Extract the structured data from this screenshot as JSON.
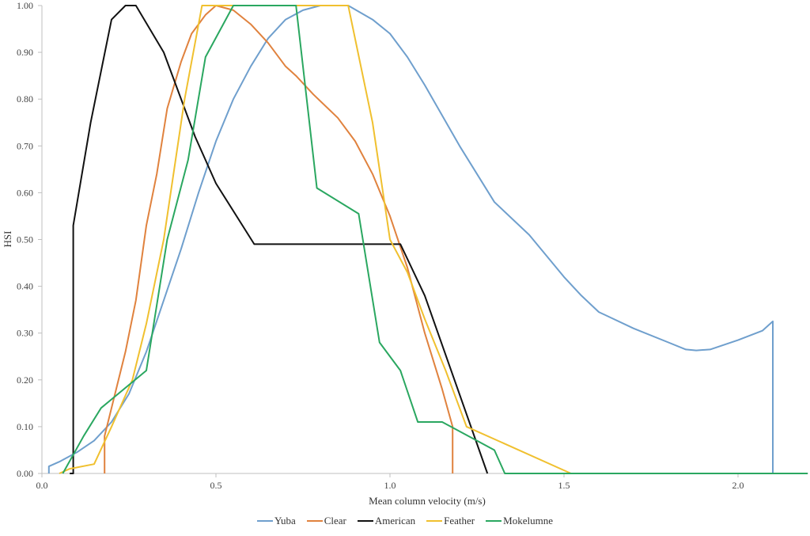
{
  "chart_data": {
    "type": "line",
    "title": "",
    "xlabel": "Mean column velocity (m/s)",
    "ylabel": "HSI",
    "xlim": [
      0,
      2.2
    ],
    "ylim": [
      0,
      1.0
    ],
    "x_ticks": [
      "0.0",
      "0.5",
      "1.0",
      "1.5",
      "2.0"
    ],
    "y_ticks": [
      "0.00",
      "0.10",
      "0.20",
      "0.30",
      "0.40",
      "0.50",
      "0.60",
      "0.70",
      "0.80",
      "0.90",
      "1.00"
    ],
    "grid": false,
    "legend_position": "bottom",
    "series": [
      {
        "name": "Yuba",
        "color": "#6f9fcd",
        "points": [
          [
            0.02,
            0
          ],
          [
            0.02,
            0.015
          ],
          [
            0.05,
            0.025
          ],
          [
            0.1,
            0.045
          ],
          [
            0.15,
            0.07
          ],
          [
            0.2,
            0.11
          ],
          [
            0.25,
            0.17
          ],
          [
            0.3,
            0.26
          ],
          [
            0.35,
            0.37
          ],
          [
            0.4,
            0.48
          ],
          [
            0.45,
            0.6
          ],
          [
            0.5,
            0.71
          ],
          [
            0.55,
            0.8
          ],
          [
            0.6,
            0.87
          ],
          [
            0.65,
            0.93
          ],
          [
            0.7,
            0.97
          ],
          [
            0.75,
            0.99
          ],
          [
            0.8,
            1.0
          ],
          [
            0.88,
            1.0
          ],
          [
            0.95,
            0.97
          ],
          [
            1.0,
            0.94
          ],
          [
            1.05,
            0.89
          ],
          [
            1.1,
            0.83
          ],
          [
            1.2,
            0.7
          ],
          [
            1.3,
            0.58
          ],
          [
            1.4,
            0.51
          ],
          [
            1.5,
            0.42
          ],
          [
            1.55,
            0.38
          ],
          [
            1.6,
            0.345
          ],
          [
            1.7,
            0.31
          ],
          [
            1.8,
            0.28
          ],
          [
            1.85,
            0.265
          ],
          [
            1.88,
            0.263
          ],
          [
            1.92,
            0.265
          ],
          [
            2.0,
            0.285
          ],
          [
            2.07,
            0.305
          ],
          [
            2.1,
            0.325
          ],
          [
            2.1,
            0
          ]
        ]
      },
      {
        "name": "Clear",
        "color": "#e0823e",
        "points": [
          [
            0.18,
            0
          ],
          [
            0.18,
            0.08
          ],
          [
            0.21,
            0.17
          ],
          [
            0.24,
            0.26
          ],
          [
            0.27,
            0.37
          ],
          [
            0.3,
            0.53
          ],
          [
            0.33,
            0.64
          ],
          [
            0.36,
            0.78
          ],
          [
            0.4,
            0.88
          ],
          [
            0.43,
            0.94
          ],
          [
            0.47,
            0.98
          ],
          [
            0.5,
            1.0
          ],
          [
            0.55,
            0.99
          ],
          [
            0.6,
            0.96
          ],
          [
            0.65,
            0.92
          ],
          [
            0.7,
            0.87
          ],
          [
            0.73,
            0.85
          ],
          [
            0.78,
            0.81
          ],
          [
            0.85,
            0.76
          ],
          [
            0.9,
            0.71
          ],
          [
            0.95,
            0.64
          ],
          [
            1.0,
            0.55
          ],
          [
            1.05,
            0.44
          ],
          [
            1.1,
            0.3
          ],
          [
            1.15,
            0.18
          ],
          [
            1.18,
            0.1
          ],
          [
            1.18,
            0
          ]
        ]
      },
      {
        "name": "American",
        "color": "#111111",
        "points": [
          [
            0.08,
            0
          ],
          [
            0.09,
            0
          ],
          [
            0.09,
            0.53
          ],
          [
            0.14,
            0.75
          ],
          [
            0.2,
            0.97
          ],
          [
            0.24,
            1.0
          ],
          [
            0.27,
            1.0
          ],
          [
            0.35,
            0.9
          ],
          [
            0.44,
            0.72
          ],
          [
            0.5,
            0.62
          ],
          [
            0.61,
            0.49
          ],
          [
            1.03,
            0.49
          ],
          [
            1.1,
            0.38
          ],
          [
            1.28,
            0
          ]
        ]
      },
      {
        "name": "Feather",
        "color": "#f0c02f",
        "points": [
          [
            0.05,
            0
          ],
          [
            0.08,
            0.01
          ],
          [
            0.15,
            0.02
          ],
          [
            0.2,
            0.1
          ],
          [
            0.26,
            0.2
          ],
          [
            0.3,
            0.32
          ],
          [
            0.35,
            0.5
          ],
          [
            0.41,
            0.8
          ],
          [
            0.46,
            1.0
          ],
          [
            0.88,
            1.0
          ],
          [
            0.95,
            0.75
          ],
          [
            1.0,
            0.5
          ],
          [
            1.05,
            0.43
          ],
          [
            1.1,
            0.33
          ],
          [
            1.16,
            0.22
          ],
          [
            1.22,
            0.1
          ],
          [
            1.52,
            0
          ]
        ]
      },
      {
        "name": "Mokelumne",
        "color": "#2aa760",
        "points": [
          [
            0.06,
            0
          ],
          [
            0.12,
            0.08
          ],
          [
            0.17,
            0.14
          ],
          [
            0.3,
            0.22
          ],
          [
            0.36,
            0.5
          ],
          [
            0.42,
            0.67
          ],
          [
            0.47,
            0.89
          ],
          [
            0.55,
            1.0
          ],
          [
            0.73,
            1.0
          ],
          [
            0.79,
            0.61
          ],
          [
            0.91,
            0.555
          ],
          [
            0.97,
            0.28
          ],
          [
            1.03,
            0.22
          ],
          [
            1.08,
            0.11
          ],
          [
            1.15,
            0.11
          ],
          [
            1.25,
            0.07
          ],
          [
            1.3,
            0.05
          ],
          [
            1.33,
            0
          ],
          [
            2.2,
            0
          ]
        ]
      }
    ]
  },
  "legend": {
    "items": [
      {
        "label": "Yuba",
        "color": "#6f9fcd"
      },
      {
        "label": "Clear",
        "color": "#e0823e"
      },
      {
        "label": "American",
        "color": "#111111"
      },
      {
        "label": "Feather",
        "color": "#f0c02f"
      },
      {
        "label": "Mokelumne",
        "color": "#2aa760"
      }
    ]
  }
}
